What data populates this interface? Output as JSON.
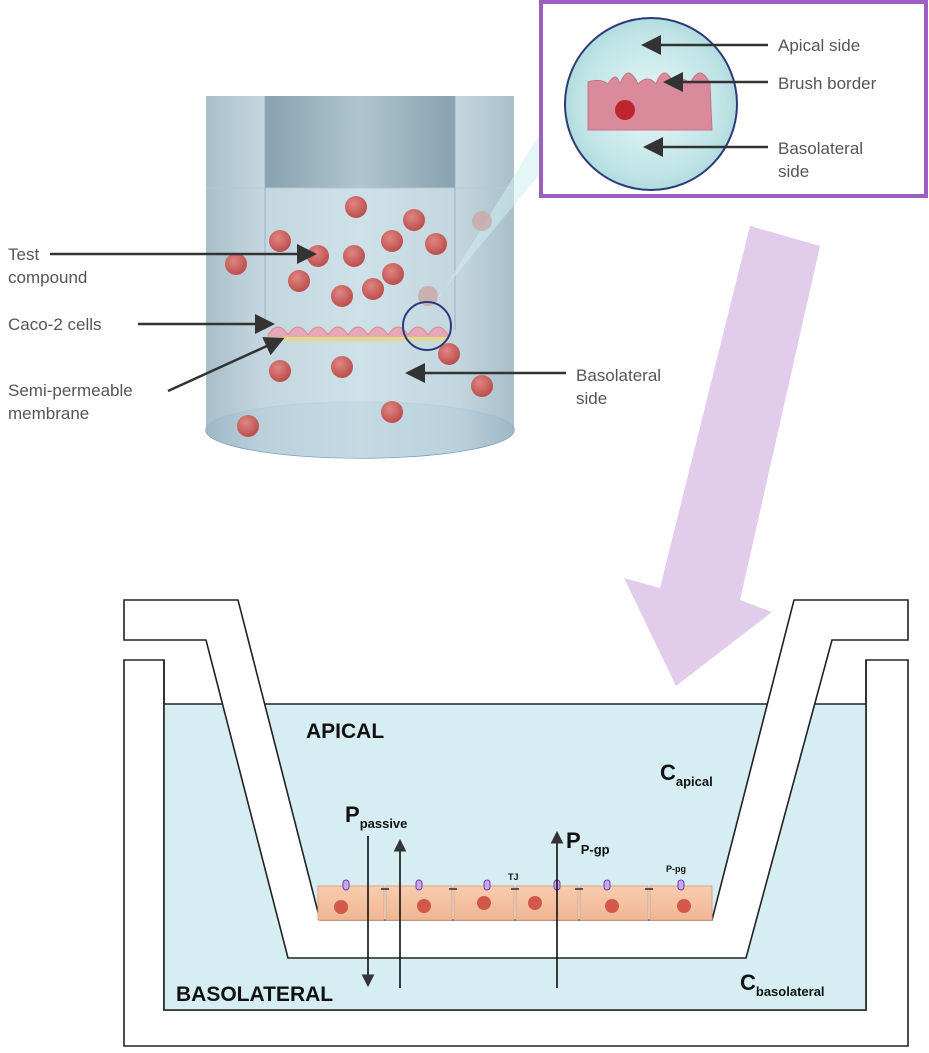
{
  "top_panel": {
    "labels": {
      "test_compound": [
        "Test",
        "compound"
      ],
      "caco2_cells": "Caco-2 cells",
      "membrane": [
        "Semi-permeable",
        "membrane"
      ],
      "basolateral_side": [
        "Basolateral",
        "side"
      ]
    },
    "inset": {
      "apical_side": "Apical side",
      "brush_border": "Brush border",
      "basolateral_side": [
        "Basolateral",
        "side"
      ]
    }
  },
  "bottom_panel": {
    "apical": "APICAL",
    "basolateral": "BASOLATERAL",
    "c_apical": {
      "main": "C",
      "sub": "apical"
    },
    "c_basolateral": {
      "main": "C",
      "sub": "basolateral"
    },
    "p_passive": {
      "main": "P",
      "sub": "passive"
    },
    "p_pgp": {
      "main": "P",
      "sub": "P-gp"
    },
    "tj": "TJ",
    "pgp": "P-pg"
  },
  "colors": {
    "accent_purple": "#9b5fc0",
    "arrow_lavender": "#e2ccec",
    "medium_blue": "#d6edf3",
    "particle_red": "#cf5f5c",
    "cell_orange": "#f5c4a6"
  }
}
